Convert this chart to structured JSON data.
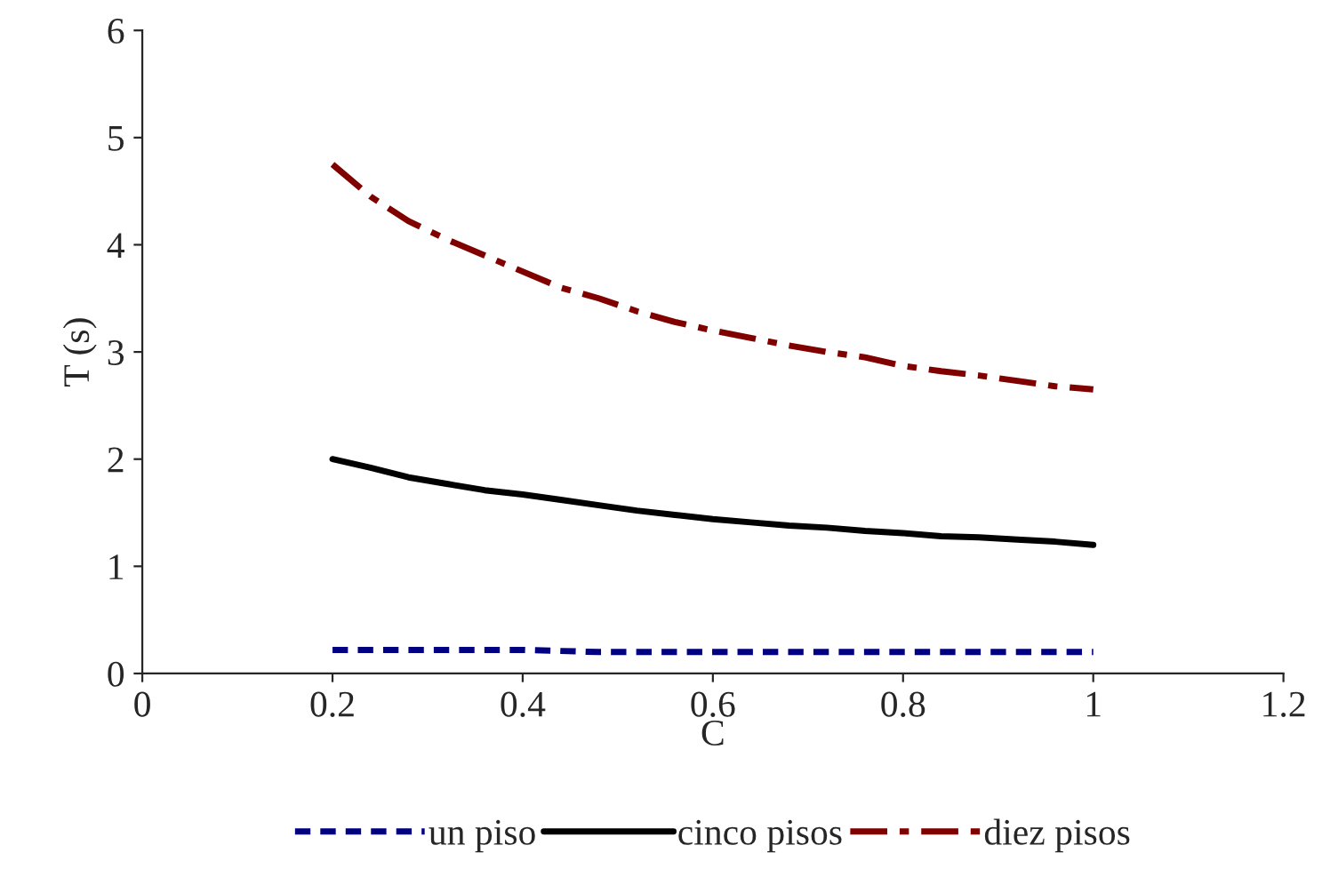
{
  "chart_data": {
    "type": "line",
    "xlabel": "C",
    "ylabel": "T (s)",
    "x": [
      0.2,
      0.24,
      0.28,
      0.32,
      0.36,
      0.4,
      0.44,
      0.48,
      0.52,
      0.56,
      0.6,
      0.64,
      0.68,
      0.72,
      0.76,
      0.8,
      0.84,
      0.88,
      0.92,
      0.96,
      1.0
    ],
    "series": [
      {
        "name": "un piso",
        "color": "#000080",
        "line_style": "dashed",
        "values": [
          0.22,
          0.22,
          0.22,
          0.22,
          0.22,
          0.22,
          0.21,
          0.2,
          0.2,
          0.2,
          0.2,
          0.2,
          0.2,
          0.2,
          0.2,
          0.2,
          0.2,
          0.2,
          0.2,
          0.2,
          0.2
        ]
      },
      {
        "name": "cinco pisos",
        "color": "#000000",
        "line_style": "solid",
        "values": [
          2.0,
          1.92,
          1.83,
          1.77,
          1.71,
          1.67,
          1.62,
          1.57,
          1.52,
          1.48,
          1.44,
          1.41,
          1.38,
          1.36,
          1.33,
          1.31,
          1.28,
          1.27,
          1.25,
          1.23,
          1.2
        ]
      },
      {
        "name": "diez pisos",
        "color": "#800000",
        "line_style": "dashdot",
        "values": [
          4.75,
          4.45,
          4.22,
          4.05,
          3.9,
          3.75,
          3.6,
          3.5,
          3.38,
          3.28,
          3.2,
          3.13,
          3.06,
          3.0,
          2.95,
          2.87,
          2.82,
          2.78,
          2.73,
          2.68,
          2.65
        ]
      }
    ],
    "xlim": [
      0,
      1.2
    ],
    "xticks": [
      0,
      0.2,
      0.4,
      0.6,
      0.8,
      1,
      1.2
    ],
    "ylim": [
      0,
      6
    ],
    "yticks": [
      0,
      1,
      2,
      3,
      4,
      5,
      6
    ],
    "grid": false,
    "legend": "bottom",
    "marker": "none"
  }
}
